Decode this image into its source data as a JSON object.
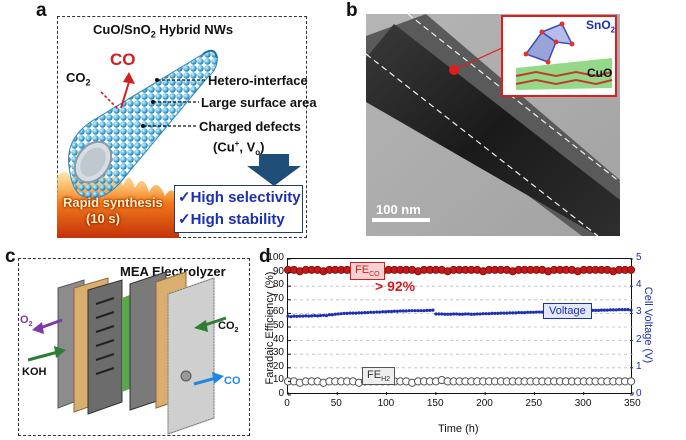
{
  "panels": {
    "a": {
      "letter": "a",
      "title_prefix": "CuO/SnO",
      "title_sub": "2",
      "title_suffix": " Hybrid NWs",
      "product": "CO",
      "reactant_main": "CO",
      "reactant_sub": "2",
      "features": [
        "Hetero-interface",
        "Large surface area",
        "Charged defects"
      ],
      "defects_main": "(Cu",
      "defects_sup": "+",
      "defects_mid": ", V",
      "defects_sub": "o",
      "defects_end": ")",
      "synthesis_line1": "Rapid synthesis",
      "synthesis_line2": "(10 s)",
      "benefits": [
        "High selectivity",
        "High stability"
      ],
      "check_mark": "✓"
    },
    "b": {
      "letter": "b",
      "inset_top_main": "SnO",
      "inset_top_sub": "2",
      "inset_bottom": "CuO",
      "scale_bar": "100 nm"
    },
    "c": {
      "letter": "c",
      "title": "MEA Electrolyzer",
      "o2_main": "O",
      "o2_sub": "2",
      "co2_main": "CO",
      "co2_sub": "2",
      "koh": "KOH",
      "co": "CO"
    },
    "d": {
      "letter": "d"
    }
  },
  "colors": {
    "fe_co": "#d21e1e",
    "voltage": "#1c2fb0",
    "fe_h2": "#555555",
    "check_text": "#1c2fb0",
    "fire": "#e8561a"
  },
  "chart_data": {
    "type": "scatter",
    "xlabel": "Time (h)",
    "ylabel_left": "Faradaic Efficiency (%)",
    "ylabel_right": "Cell Voltage (V)",
    "xlim": [
      0,
      350
    ],
    "ylim_left": [
      0,
      100
    ],
    "ylim_right": [
      0,
      5
    ],
    "xticks": [
      0,
      50,
      100,
      150,
      200,
      250,
      300,
      350
    ],
    "yticks_left": [
      0,
      10,
      20,
      30,
      40,
      50,
      60,
      70,
      80,
      90,
      100
    ],
    "yticks_right": [
      0,
      1,
      2,
      3,
      4,
      5
    ],
    "grid": "horizontal-dashed",
    "annotation": "> 92%",
    "series": [
      {
        "name": "FE_CO",
        "label_main": "FE",
        "label_sub": "CO",
        "axis": "left",
        "marker": "filled-circle",
        "x_start": 0,
        "x_end": 350,
        "x_step": 6,
        "values": [
          92,
          92,
          91,
          92,
          92,
          92,
          91,
          92,
          92,
          92,
          92,
          91,
          92,
          92,
          92,
          92,
          91,
          92,
          92,
          92,
          92,
          92,
          91,
          92,
          92,
          92,
          92,
          91,
          92,
          92,
          92,
          92,
          92,
          91,
          92,
          92,
          92,
          92,
          91,
          92,
          92,
          92,
          92,
          92,
          91,
          92,
          92,
          92,
          92,
          91,
          92,
          92,
          92,
          92,
          92,
          91,
          92,
          92,
          92
        ]
      },
      {
        "name": "Voltage",
        "label_main": "Voltage",
        "axis": "right",
        "marker": "small-dot",
        "x_start": 0,
        "x_end": 350,
        "x_step": 3,
        "values": [
          2.9,
          2.88,
          2.9,
          2.89,
          2.9,
          2.9,
          2.91,
          2.9,
          2.91,
          2.92,
          2.91,
          2.92,
          2.93,
          2.92,
          2.95,
          2.95,
          2.97,
          2.98,
          2.99,
          3.0,
          3.0,
          3.01,
          3.01,
          3.01,
          3.02,
          3.02,
          3.03,
          3.03,
          3.04,
          3.04,
          3.05,
          3.05,
          3.06,
          3.06,
          3.07,
          3.07,
          3.08,
          3.08,
          3.09,
          3.09,
          3.09,
          3.1,
          3.1,
          3.1,
          3.1,
          3.1,
          3.1,
          3.11,
          3.11,
          3.12,
          2.98,
          2.98,
          2.98,
          2.97,
          2.97,
          2.97,
          2.98,
          2.98,
          2.97,
          2.97,
          2.98,
          2.98,
          2.97,
          2.97,
          2.98,
          2.98,
          2.99,
          2.99,
          2.99,
          3.0,
          3.0,
          3.0,
          3.01,
          3.01,
          3.01,
          3.02,
          3.02,
          3.02,
          3.03,
          3.03,
          3.03,
          3.04,
          3.04,
          3.04,
          3.05,
          3.05,
          3.05,
          3.05,
          3.06,
          3.06,
          3.06,
          3.07,
          3.07,
          3.07,
          3.08,
          3.08,
          3.08,
          3.09,
          3.09,
          3.09,
          3.1,
          3.1,
          3.1,
          3.11,
          3.11,
          3.11,
          3.12,
          3.12,
          3.12,
          3.13,
          3.13,
          3.13,
          3.14,
          3.14,
          3.14,
          3.14,
          3.12
        ]
      },
      {
        "name": "FE_H2",
        "label_main": "FE",
        "label_sub": "H2",
        "axis": "left",
        "marker": "open-circle",
        "x_start": 0,
        "x_end": 350,
        "x_step": 6,
        "values": [
          10,
          10,
          9,
          10,
          10,
          10,
          9,
          10,
          10,
          10,
          10,
          10,
          9,
          10,
          10,
          10,
          10,
          10,
          10,
          10,
          10,
          9,
          10,
          10,
          10,
          10,
          11,
          10,
          10,
          10,
          10,
          10,
          10,
          10,
          10,
          10,
          10,
          10,
          10,
          10,
          10,
          10,
          10,
          10,
          10,
          10,
          10,
          10,
          10,
          10,
          10,
          10,
          10,
          10,
          10,
          10,
          10,
          10,
          10
        ]
      }
    ]
  }
}
